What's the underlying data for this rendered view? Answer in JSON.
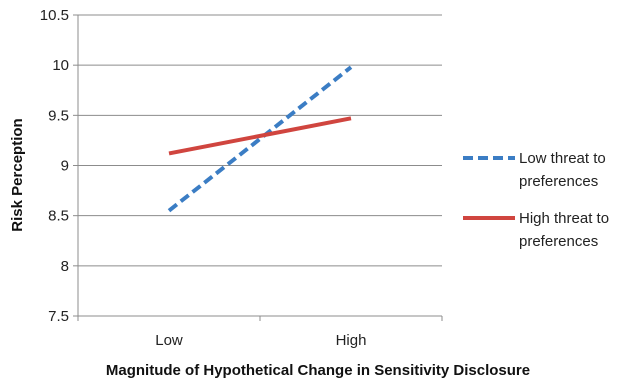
{
  "chart_data": {
    "type": "line",
    "title": "",
    "xlabel": "Magnitude of Hypothetical Change in Sensitivity Disclosure",
    "ylabel": "Risk Perception",
    "categories": [
      "Low",
      "High"
    ],
    "ylim": [
      7.5,
      10.5
    ],
    "yticks": [
      "7.5",
      "8",
      "8.5",
      "9",
      "9.5",
      "10",
      "10.5"
    ],
    "grid": true,
    "legend_position": "right",
    "series": [
      {
        "name": "Low threat to preferences",
        "name_lines": [
          "Low threat to",
          "preferences"
        ],
        "values": [
          8.55,
          9.98
        ],
        "color": "#3b7dc4",
        "dash": "dashed"
      },
      {
        "name": "High threat to preferences",
        "name_lines": [
          "High threat to",
          "preferences"
        ],
        "values": [
          9.12,
          9.47
        ],
        "color": "#d0453f",
        "dash": "solid"
      }
    ]
  }
}
